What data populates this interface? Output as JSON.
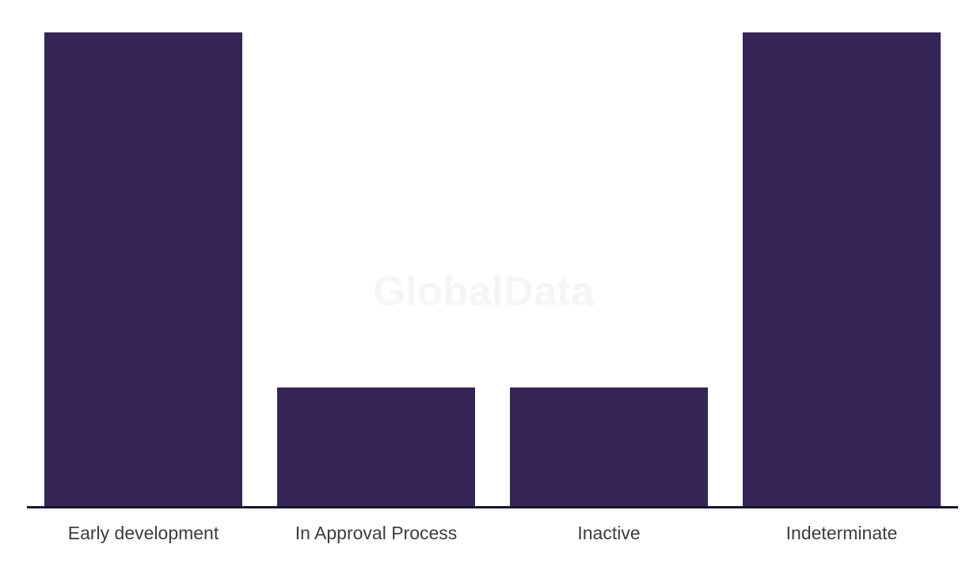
{
  "watermark": {
    "text": "GlobalData",
    "color": "#f5f5f6"
  },
  "chart_data": {
    "type": "bar",
    "categories": [
      "Early development",
      "In Approval Process",
      "Inactive",
      "Indeterminate"
    ],
    "values": [
      4,
      1,
      1,
      4
    ],
    "title": "",
    "xlabel": "",
    "ylabel": "",
    "ylim": [
      0,
      4
    ],
    "y_axis_visible": false,
    "grid": false,
    "legend": "none",
    "bar_color": "#352556",
    "axis_line_color": "#15152b",
    "label_color": "#3c3c3c"
  }
}
